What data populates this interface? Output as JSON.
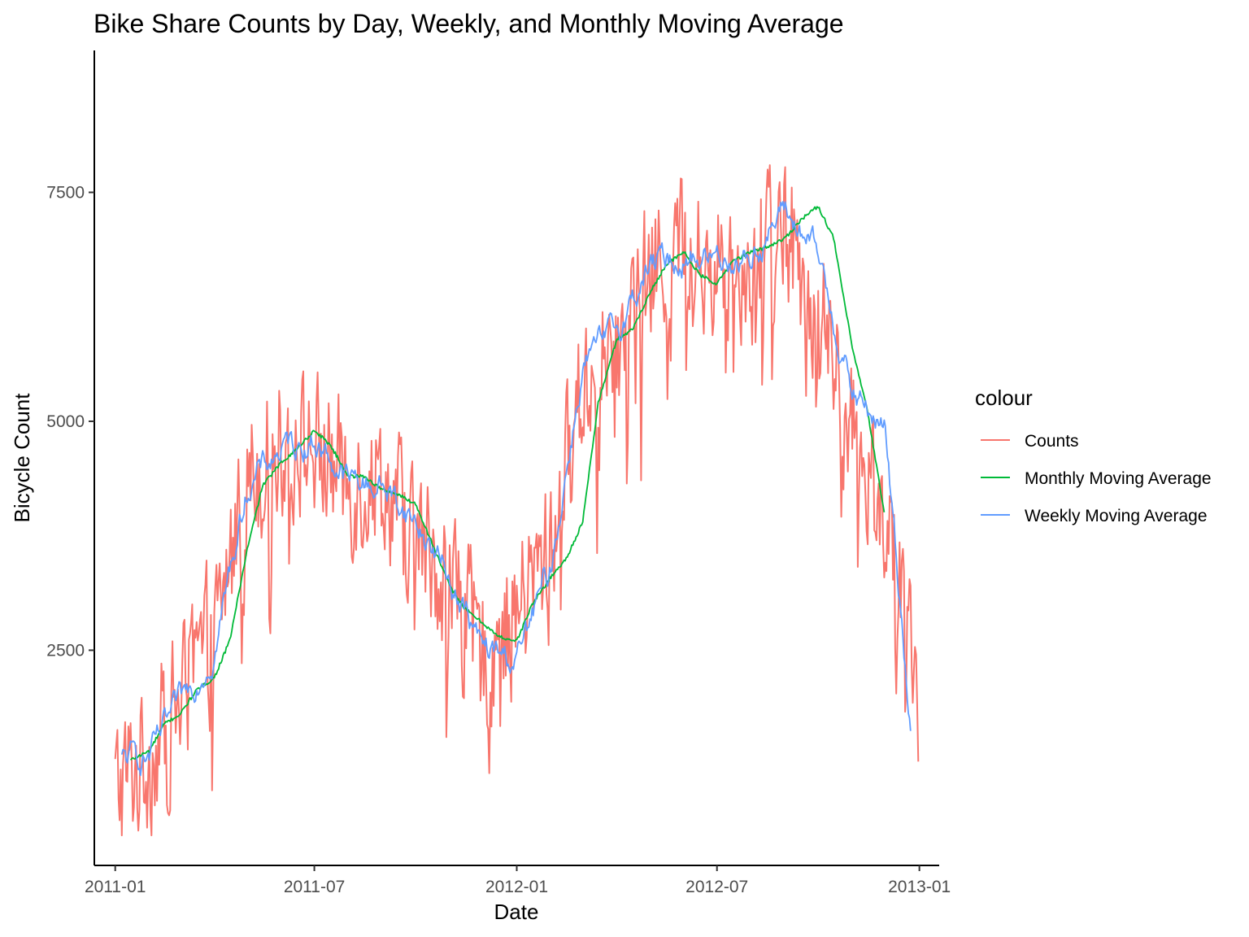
{
  "chart_data": {
    "type": "line",
    "title": "Bike Share Counts by Day, Weekly, and Monthly Moving Average",
    "xlabel": "Date",
    "ylabel": "Bicycle Count",
    "x_ticks": [
      "2011-01",
      "2011-07",
      "2012-01",
      "2012-07",
      "2013-01"
    ],
    "y_ticks": [
      2500,
      5000,
      7500
    ],
    "xlim": [
      "2010-12-13",
      "2013-01-19"
    ],
    "ylim": [
      150,
      9050
    ],
    "grid": false,
    "legend": {
      "title": "colour",
      "placement": "right"
    },
    "series": [
      {
        "name": "Counts",
        "color": "#F8766D",
        "noise": 1400,
        "x": [
          "2011-01-01",
          "2011-02-01",
          "2011-03-01",
          "2011-04-01",
          "2011-05-01",
          "2011-06-01",
          "2011-07-01",
          "2011-08-01",
          "2011-09-01",
          "2011-10-01",
          "2011-11-01",
          "2011-12-01",
          "2012-01-01",
          "2012-02-01",
          "2012-03-01",
          "2012-04-01",
          "2012-05-01",
          "2012-06-01",
          "2012-07-01",
          "2012-08-01",
          "2012-09-01",
          "2012-10-01",
          "2012-11-01",
          "2012-12-01",
          "2012-12-31"
        ],
        "values": [
          1000,
          1350,
          1950,
          2650,
          4400,
          4800,
          4700,
          4350,
          4400,
          3700,
          3300,
          2400,
          2900,
          3600,
          5400,
          5800,
          6600,
          6900,
          6700,
          6800,
          7200,
          6200,
          4800,
          4000,
          1800
        ]
      },
      {
        "name": "Monthly Moving Average",
        "color": "#00BA38",
        "x": [
          "2011-01-15",
          "2011-02-01",
          "2011-02-15",
          "2011-03-01",
          "2011-03-15",
          "2011-04-01",
          "2011-04-15",
          "2011-05-01",
          "2011-05-15",
          "2011-06-01",
          "2011-06-15",
          "2011-07-01",
          "2011-07-15",
          "2011-08-01",
          "2011-08-15",
          "2011-09-01",
          "2011-09-15",
          "2011-10-01",
          "2011-10-15",
          "2011-11-01",
          "2011-11-15",
          "2011-12-01",
          "2011-12-15",
          "2012-01-01",
          "2012-01-15",
          "2012-02-01",
          "2012-02-15",
          "2012-03-01",
          "2012-03-15",
          "2012-04-01",
          "2012-04-15",
          "2012-05-01",
          "2012-05-15",
          "2012-06-01",
          "2012-06-15",
          "2012-07-01",
          "2012-07-15",
          "2012-08-01",
          "2012-08-15",
          "2012-09-01",
          "2012-09-15",
          "2012-10-01",
          "2012-10-15",
          "2012-11-01",
          "2012-11-15",
          "2012-11-30"
        ],
        "values": [
          1300,
          1400,
          1700,
          1800,
          2050,
          2200,
          2600,
          3600,
          4300,
          4550,
          4700,
          4900,
          4750,
          4400,
          4400,
          4250,
          4200,
          4100,
          3700,
          3200,
          2950,
          2800,
          2650,
          2600,
          3000,
          3300,
          3500,
          3900,
          5200,
          5900,
          6000,
          6400,
          6700,
          6850,
          6600,
          6500,
          6750,
          6850,
          6900,
          7000,
          7200,
          7350,
          7000,
          5800,
          5100,
          4000
        ]
      },
      {
        "name": "Weekly Moving Average",
        "color": "#619CFF",
        "noise": 350,
        "x": [
          "2011-01-07",
          "2011-02-01",
          "2011-03-01",
          "2011-04-01",
          "2011-05-01",
          "2011-06-01",
          "2011-07-01",
          "2011-08-01",
          "2011-09-01",
          "2011-10-01",
          "2011-11-01",
          "2011-12-01",
          "2012-01-01",
          "2012-02-01",
          "2012-03-01",
          "2012-04-01",
          "2012-05-01",
          "2012-06-01",
          "2012-07-01",
          "2012-08-01",
          "2012-09-01",
          "2012-10-01",
          "2012-11-01",
          "2012-12-01",
          "2012-12-24"
        ],
        "values": [
          1300,
          1350,
          1900,
          2500,
          4300,
          4700,
          4800,
          4350,
          4300,
          3900,
          3300,
          2500,
          2400,
          3400,
          5600,
          6000,
          6700,
          6800,
          6800,
          6800,
          7300,
          6800,
          5300,
          4900,
          1700
        ]
      }
    ]
  }
}
